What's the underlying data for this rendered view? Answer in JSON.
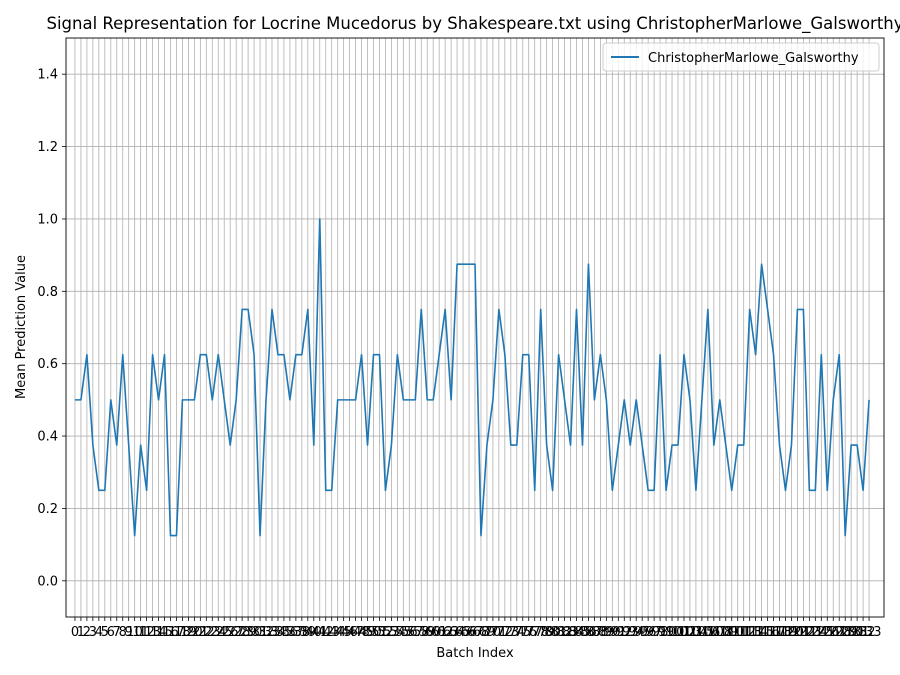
{
  "chart_data": {
    "type": "line",
    "title": "Signal Representation for Locrine Mucedorus by Shakespeare.txt using ChristopherMarlowe_Galsworthy",
    "xlabel": "Batch Index",
    "ylabel": "Mean Prediction Value",
    "xlim": [
      -1.5,
      135.5
    ],
    "ylim": [
      -0.1,
      1.5
    ],
    "yticks": [
      0.0,
      0.2,
      0.4,
      0.6,
      0.8,
      1.0,
      1.2,
      1.4
    ],
    "ytick_labels": [
      "0.0",
      "0.2",
      "0.4",
      "0.6",
      "0.8",
      "1.0",
      "1.2",
      "1.4"
    ],
    "grid": true,
    "legend_position": "upper right",
    "line_color": "#1f77b4",
    "series": [
      {
        "name": "ChristopherMarlowe_Galsworthy",
        "values": [
          0.5,
          0.5,
          0.625,
          0.375,
          0.25,
          0.25,
          0.5,
          0.375,
          0.625,
          0.375,
          0.125,
          0.375,
          0.25,
          0.625,
          0.5,
          0.625,
          0.125,
          0.125,
          0.5,
          0.5,
          0.5,
          0.625,
          0.625,
          0.5,
          0.625,
          0.5,
          0.375,
          0.5,
          0.75,
          0.75,
          0.625,
          0.125,
          0.5,
          0.75,
          0.625,
          0.625,
          0.5,
          0.625,
          0.625,
          0.75,
          0.375,
          1.0,
          0.25,
          0.25,
          0.5,
          0.5,
          0.5,
          0.5,
          0.625,
          0.375,
          0.625,
          0.625,
          0.25,
          0.375,
          0.625,
          0.5,
          0.5,
          0.5,
          0.75,
          0.5,
          0.5,
          0.625,
          0.75,
          0.5,
          0.875,
          0.875,
          0.875,
          0.875,
          0.125,
          0.375,
          0.5,
          0.75,
          0.625,
          0.375,
          0.375,
          0.625,
          0.625,
          0.25,
          0.75,
          0.375,
          0.25,
          0.625,
          0.5,
          0.375,
          0.75,
          0.375,
          0.875,
          0.5,
          0.625,
          0.5,
          0.25,
          0.375,
          0.5,
          0.375,
          0.5,
          0.375,
          0.25,
          0.25,
          0.625,
          0.25,
          0.375,
          0.375,
          0.625,
          0.5,
          0.25,
          0.5,
          0.75,
          0.375,
          0.5,
          0.375,
          0.25,
          0.375,
          0.375,
          0.75,
          0.625,
          0.875,
          0.75,
          0.625,
          0.375,
          0.25,
          0.375,
          0.75,
          0.75,
          0.25,
          0.25,
          0.625,
          0.25,
          0.5,
          0.625,
          0.125,
          0.375,
          0.375,
          0.25,
          0.5
        ]
      }
    ]
  }
}
